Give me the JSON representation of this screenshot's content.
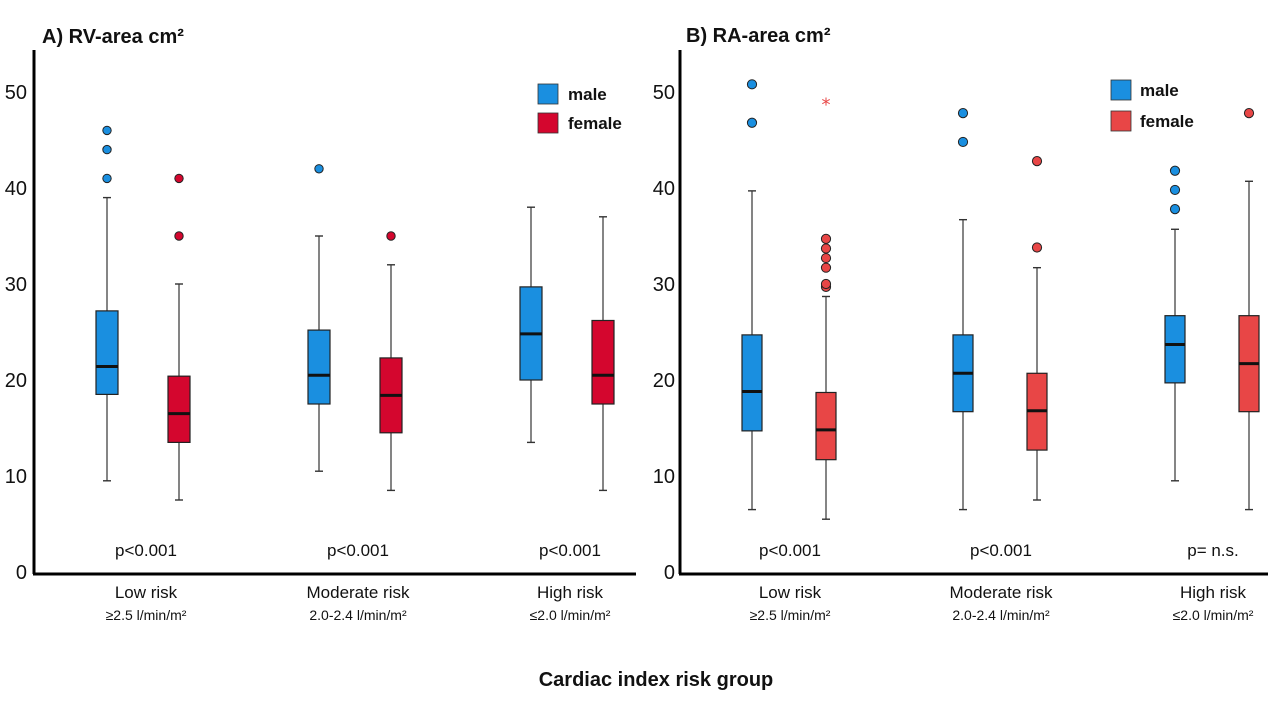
{
  "chart_data": [
    {
      "type": "boxplot",
      "title": "A) RV-area cm²",
      "y_ticks": [
        "0",
        "10",
        "20",
        "30",
        "40",
        "50"
      ],
      "ylim": [
        0,
        55
      ],
      "categories": [
        {
          "label": "Low risk",
          "sublabel": "≥2.5 l/min/m²",
          "p_value": "p<0.001"
        },
        {
          "label": "Moderate risk",
          "sublabel": "2.0-2.4 l/min/m²",
          "p_value": "p<0.001"
        },
        {
          "label": "High risk",
          "sublabel": "≤2.0 l/min/m²",
          "p_value": "p<0.001"
        }
      ],
      "series": [
        {
          "name": "male",
          "color": "#1a8fe0",
          "boxes": [
            {
              "whisker_low": 9.5,
              "q1": 18.5,
              "median": 21.4,
              "q3": 27.2,
              "whisker_high": 39,
              "outliers": [
                41,
                44,
                46
              ],
              "extremes": []
            },
            {
              "whisker_low": 10.5,
              "q1": 17.5,
              "median": 20.5,
              "q3": 25.2,
              "whisker_high": 35,
              "outliers": [
                42
              ],
              "extremes": []
            },
            {
              "whisker_low": 13.5,
              "q1": 20,
              "median": 24.8,
              "q3": 29.7,
              "whisker_high": 38,
              "outliers": [],
              "extremes": []
            }
          ]
        },
        {
          "name": "female",
          "color": "#d4062e",
          "boxes": [
            {
              "whisker_low": 7.5,
              "q1": 13.5,
              "median": 16.5,
              "q3": 20.4,
              "whisker_high": 30,
              "outliers": [
                35,
                41
              ],
              "extremes": []
            },
            {
              "whisker_low": 8.5,
              "q1": 14.5,
              "median": 18.4,
              "q3": 22.3,
              "whisker_high": 32,
              "outliers": [
                35
              ],
              "extremes": []
            },
            {
              "whisker_low": 8.5,
              "q1": 17.5,
              "median": 20.5,
              "q3": 26.2,
              "whisker_high": 37,
              "outliers": [],
              "extremes": []
            }
          ]
        }
      ]
    },
    {
      "type": "boxplot",
      "title": "B) RA-area cm²",
      "y_ticks": [
        "0",
        "10",
        "20",
        "30",
        "40",
        "50"
      ],
      "ylim": [
        0,
        55
      ],
      "categories": [
        {
          "label": "Low risk",
          "sublabel": "≥2.5 l/min/m²",
          "p_value": "p<0.001"
        },
        {
          "label": "Moderate risk",
          "sublabel": "2.0-2.4 l/min/m²",
          "p_value": "p<0.001"
        },
        {
          "label": "High risk",
          "sublabel": "≤2.0 l/min/m²",
          "p_value": "p= n.s."
        }
      ],
      "series": [
        {
          "name": "male",
          "color": "#1a8fe0",
          "boxes": [
            {
              "whisker_low": 6.5,
              "q1": 14.7,
              "median": 18.8,
              "q3": 24.7,
              "whisker_high": 39.7,
              "outliers": [
                46.8,
                50.8
              ],
              "extremes": []
            },
            {
              "whisker_low": 6.5,
              "q1": 16.7,
              "median": 20.7,
              "q3": 24.7,
              "whisker_high": 36.7,
              "outliers": [
                44.8,
                47.8
              ],
              "extremes": []
            },
            {
              "whisker_low": 9.5,
              "q1": 19.7,
              "median": 23.7,
              "q3": 26.7,
              "whisker_high": 35.7,
              "outliers": [
                37.8,
                39.8,
                41.8
              ],
              "extremes": []
            }
          ]
        },
        {
          "name": "female",
          "color": "#e84646",
          "boxes": [
            {
              "whisker_low": 5.5,
              "q1": 11.7,
              "median": 14.8,
              "q3": 18.7,
              "whisker_high": 28.7,
              "outliers": [
                29.7,
                30,
                31.7,
                32.7,
                33.7,
                34.7
              ],
              "extremes": [
                48.8
              ]
            },
            {
              "whisker_low": 7.5,
              "q1": 12.7,
              "median": 16.8,
              "q3": 20.7,
              "whisker_high": 31.7,
              "outliers": [
                33.8,
                42.8
              ],
              "extremes": []
            },
            {
              "whisker_low": 6.5,
              "q1": 16.7,
              "median": 21.7,
              "q3": 26.7,
              "whisker_high": 40.7,
              "outliers": [
                47.8
              ],
              "extremes": []
            }
          ]
        }
      ]
    }
  ],
  "legend": {
    "male": "male",
    "female": "female"
  },
  "shared_xlabel": "Cardiac index risk group"
}
